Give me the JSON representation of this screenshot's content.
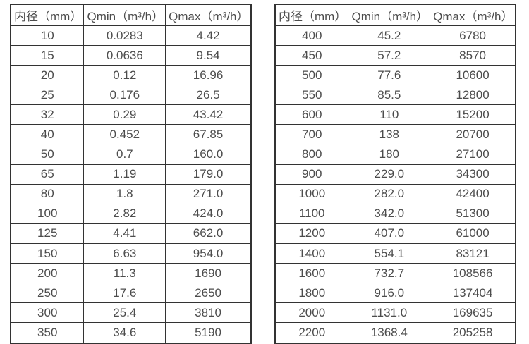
{
  "colors": {
    "border": "#333333",
    "text": "#4c4c4c",
    "background": "#ffffff"
  },
  "chart_data": [
    {
      "type": "table",
      "title": "",
      "headers": [
        "内径（mm）",
        "Qmin（m³/h）",
        "Qmax（m³/h）"
      ],
      "rows": [
        [
          "10",
          "0.0283",
          "4.42"
        ],
        [
          "15",
          "0.0636",
          "9.54"
        ],
        [
          "20",
          "0.12",
          "16.96"
        ],
        [
          "25",
          "0.176",
          "26.5"
        ],
        [
          "32",
          "0.29",
          "43.42"
        ],
        [
          "40",
          "0.452",
          "67.85"
        ],
        [
          "50",
          "0.7",
          "160.0"
        ],
        [
          "65",
          "1.19",
          "179.0"
        ],
        [
          "80",
          "1.8",
          "271.0"
        ],
        [
          "100",
          "2.82",
          "424.0"
        ],
        [
          "125",
          "4.41",
          "662.0"
        ],
        [
          "150",
          "6.63",
          "954.0"
        ],
        [
          "200",
          "11.3",
          "1690"
        ],
        [
          "250",
          "17.6",
          "2650"
        ],
        [
          "300",
          "25.4",
          "3810"
        ],
        [
          "350",
          "34.6",
          "5190"
        ]
      ]
    },
    {
      "type": "table",
      "title": "",
      "headers": [
        "内径（mm）",
        "Qmin（m³/h）",
        "Qmax（m³/h）"
      ],
      "rows": [
        [
          "400",
          "45.2",
          "6780"
        ],
        [
          "450",
          "57.2",
          "8570"
        ],
        [
          "500",
          "77.6",
          "10600"
        ],
        [
          "550",
          "85.5",
          "12800"
        ],
        [
          "600",
          "110",
          "15200"
        ],
        [
          "700",
          "138",
          "20700"
        ],
        [
          "800",
          "180",
          "27100"
        ],
        [
          "900",
          "229.0",
          "34300"
        ],
        [
          "1000",
          "282.0",
          "42400"
        ],
        [
          "1100",
          "342.0",
          "51300"
        ],
        [
          "1200",
          "407.0",
          "61000"
        ],
        [
          "1400",
          "554.1",
          "83121"
        ],
        [
          "1600",
          "732.7",
          "108566"
        ],
        [
          "1800",
          "916.0",
          "137404"
        ],
        [
          "2000",
          "1131.0",
          "169635"
        ],
        [
          "2200",
          "1368.4",
          "205258"
        ]
      ]
    }
  ]
}
